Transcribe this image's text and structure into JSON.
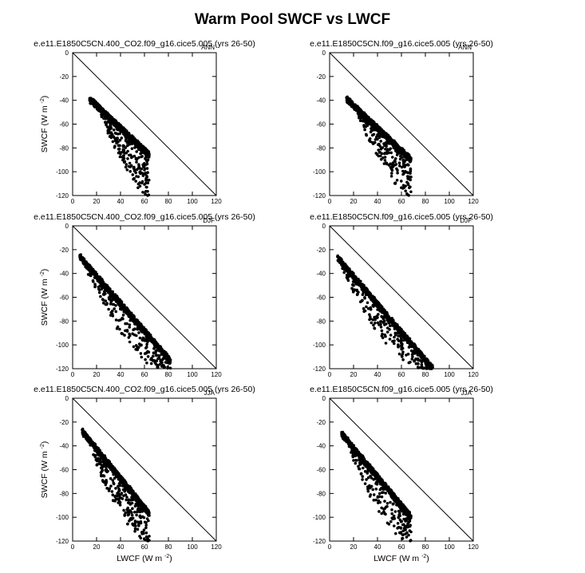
{
  "title": "Warm Pool SWCF vs LWCF",
  "colors": {
    "marker": "#000000",
    "axis": "#000000",
    "background": "#ffffff"
  },
  "axes": {
    "xlabel": "LWCF (W m",
    "ylabel": "SWCF (W m",
    "unit_exponent": "-2",
    "xlabel_close": ")",
    "ylabel_close": ")",
    "xticks": [
      "0",
      "20",
      "40",
      "60",
      "80",
      "100",
      "120"
    ],
    "yticks": [
      "0",
      "-20",
      "-40",
      "-60",
      "-80",
      "-100",
      "-120"
    ],
    "xlim": [
      0,
      120
    ],
    "ylim": [
      -120,
      0
    ]
  },
  "chart_data": [
    {
      "type": "scatter",
      "title": "e.e11.E1850C5CN.400_CO2.f09_g16.cice5.005 (yrs 26-50)",
      "corner_label": "ANN",
      "xlim": [
        0,
        120
      ],
      "ylim": [
        -120,
        0
      ],
      "reference_line": [
        [
          0,
          0
        ],
        [
          120,
          -120
        ]
      ],
      "envelope": {
        "xmin": 14,
        "xmax": 64,
        "y_at_xmin": -37,
        "y_upper_at_xmax": -84,
        "y_lower_at_xmax": -120,
        "spread_start": 22
      }
    },
    {
      "type": "scatter",
      "title": "e.e11.E1850C5CN.f09_g16.cice5.005 (yrs 26-50)",
      "corner_label": "ANN",
      "xlim": [
        0,
        120
      ],
      "ylim": [
        -120,
        0
      ],
      "reference_line": [
        [
          0,
          0
        ],
        [
          120,
          -120
        ]
      ],
      "envelope": {
        "xmin": 14,
        "xmax": 68,
        "y_at_xmin": -37,
        "y_upper_at_xmax": -88,
        "y_lower_at_xmax": -120,
        "spread_start": 22
      }
    },
    {
      "type": "scatter",
      "title": "e.e11.E1850C5CN.400_CO2.f09_g16.cice5.005 (yrs 26-50)",
      "corner_label": "DJF",
      "xlim": [
        0,
        120
      ],
      "ylim": [
        -120,
        0
      ],
      "reference_line": [
        [
          0,
          0
        ],
        [
          120,
          -120
        ]
      ],
      "envelope": {
        "xmin": 6,
        "xmax": 82,
        "y_at_xmin": -24,
        "y_upper_at_xmax": -112,
        "y_lower_at_xmax": -120,
        "spread_start": 8
      }
    },
    {
      "type": "scatter",
      "title": "e.e11.E1850C5CN.f09_g16.cice5.005 (yrs 26-50)",
      "corner_label": "DJF",
      "xlim": [
        0,
        120
      ],
      "ylim": [
        -120,
        0
      ],
      "reference_line": [
        [
          0,
          0
        ],
        [
          120,
          -120
        ]
      ],
      "envelope": {
        "xmin": 6,
        "xmax": 86,
        "y_at_xmin": -24,
        "y_upper_at_xmax": -118,
        "y_lower_at_xmax": -120,
        "spread_start": 8
      }
    },
    {
      "type": "scatter",
      "title": "e.e11.E1850C5CN.400_CO2.f09_g16.cice5.005 (yrs 26-50)",
      "corner_label": "JJA",
      "xlim": [
        0,
        120
      ],
      "ylim": [
        -120,
        0
      ],
      "reference_line": [
        [
          0,
          0
        ],
        [
          120,
          -120
        ]
      ],
      "envelope": {
        "xmin": 8,
        "xmax": 64,
        "y_at_xmin": -26,
        "y_upper_at_xmax": -95,
        "y_lower_at_xmax": -120,
        "spread_start": 12
      }
    },
    {
      "type": "scatter",
      "title": "e.e11.E1850C5CN.f09_g16.cice5.005 (yrs 26-50)",
      "corner_label": "JJA",
      "xlim": [
        0,
        120
      ],
      "ylim": [
        -120,
        0
      ],
      "reference_line": [
        [
          0,
          0
        ],
        [
          120,
          -120
        ]
      ],
      "envelope": {
        "xmin": 10,
        "xmax": 68,
        "y_at_xmin": -28,
        "y_upper_at_xmax": -98,
        "y_lower_at_xmax": -120,
        "spread_start": 14
      }
    }
  ]
}
